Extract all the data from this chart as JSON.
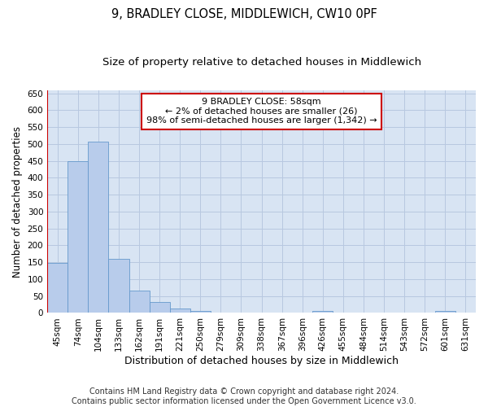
{
  "title": "9, BRADLEY CLOSE, MIDDLEWICH, CW10 0PF",
  "subtitle": "Size of property relative to detached houses in Middlewich",
  "xlabel": "Distribution of detached houses by size in Middlewich",
  "ylabel": "Number of detached properties",
  "categories": [
    "45sqm",
    "74sqm",
    "104sqm",
    "133sqm",
    "162sqm",
    "191sqm",
    "221sqm",
    "250sqm",
    "279sqm",
    "309sqm",
    "338sqm",
    "367sqm",
    "396sqm",
    "426sqm",
    "455sqm",
    "484sqm",
    "514sqm",
    "543sqm",
    "572sqm",
    "601sqm",
    "631sqm"
  ],
  "values": [
    148,
    449,
    507,
    159,
    67,
    33,
    13,
    7,
    0,
    0,
    0,
    0,
    0,
    7,
    0,
    0,
    0,
    0,
    0,
    7,
    0
  ],
  "bar_color": "#b8cceb",
  "bar_edge_color": "#6699cc",
  "highlight_color": "#cc0000",
  "annotation_text": "9 BRADLEY CLOSE: 58sqm\n← 2% of detached houses are smaller (26)\n98% of semi-detached houses are larger (1,342) →",
  "annotation_box_color": "#ffffff",
  "annotation_box_edge_color": "#cc0000",
  "ylim": [
    0,
    660
  ],
  "yticks": [
    0,
    50,
    100,
    150,
    200,
    250,
    300,
    350,
    400,
    450,
    500,
    550,
    600,
    650
  ],
  "grid_color": "#b8c8e0",
  "bg_color": "#d8e4f3",
  "footer": "Contains HM Land Registry data © Crown copyright and database right 2024.\nContains public sector information licensed under the Open Government Licence v3.0.",
  "title_fontsize": 10.5,
  "subtitle_fontsize": 9.5,
  "xlabel_fontsize": 9,
  "ylabel_fontsize": 8.5,
  "tick_fontsize": 7.5,
  "annot_fontsize": 8,
  "footer_fontsize": 7
}
